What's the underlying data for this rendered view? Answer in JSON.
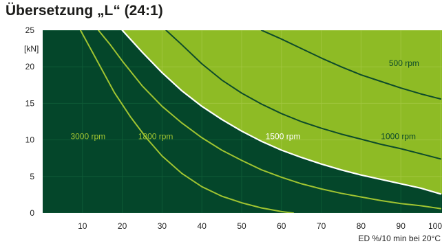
{
  "chart_data": {
    "type": "line",
    "title": "Übersetzung „L“ (24:1)",
    "xlabel": "ED %/10 min bei 20°C",
    "ylabel": "[kN]",
    "xlim": [
      0,
      100
    ],
    "ylim": [
      0,
      25
    ],
    "x_ticks": [
      "10",
      "20",
      "30",
      "40",
      "50",
      "60",
      "70",
      "80",
      "90",
      "100"
    ],
    "y_ticks": [
      "0",
      "5",
      "10",
      "15",
      "20",
      "25"
    ],
    "grid": true,
    "colors": {
      "dark_region": "#04462a",
      "light_region": "#8ebb25",
      "curve_on_dark": "#a0c431",
      "curve_on_light": "#0d4a2b",
      "boundary": "#ffffff",
      "grid_on_dark": "#0e5a36",
      "grid_on_light": "#9fc63d"
    },
    "series": [
      {
        "name": "3000 rpm",
        "label_at": [
          7,
          10.5
        ],
        "x": [
          9.5,
          12,
          15,
          18,
          22,
          26,
          30,
          35,
          40,
          45,
          50,
          55,
          60,
          63
        ],
        "y": [
          25,
          22.5,
          19.5,
          16.5,
          13.2,
          10.3,
          7.8,
          5.4,
          3.6,
          2.3,
          1.4,
          0.7,
          0.2,
          0
        ]
      },
      {
        "name": "1800 rpm",
        "label_at": [
          24,
          10.5
        ],
        "x": [
          14,
          17,
          20,
          25,
          30,
          35,
          40,
          45,
          50,
          55,
          60,
          65,
          70,
          75,
          80,
          85,
          90,
          95,
          100
        ],
        "y": [
          25,
          23,
          20.8,
          17.4,
          14.6,
          12.3,
          10.3,
          8.6,
          7.2,
          5.9,
          4.9,
          4.0,
          3.3,
          2.7,
          2.2,
          1.7,
          1.3,
          1.0,
          0.6
        ]
      },
      {
        "name": "1500 rpm",
        "label_at": [
          56,
          10.5
        ],
        "x": [
          20,
          25,
          30,
          35,
          40,
          45,
          50,
          55,
          60,
          65,
          70,
          75,
          80,
          85,
          90,
          95,
          100
        ],
        "y": [
          25,
          22,
          19.2,
          16.7,
          14.6,
          12.8,
          11.2,
          9.8,
          8.6,
          7.6,
          6.7,
          5.9,
          5.2,
          4.6,
          4.0,
          3.4,
          2.6
        ]
      },
      {
        "name": "1000 rpm",
        "label_at": [
          85,
          10.5
        ],
        "x": [
          31,
          35,
          40,
          45,
          50,
          55,
          60,
          65,
          70,
          75,
          80,
          85,
          90,
          95,
          100
        ],
        "y": [
          25,
          23,
          20.4,
          18.2,
          16.4,
          14.9,
          13.6,
          12.5,
          11.6,
          10.8,
          10.1,
          9.4,
          8.8,
          8.1,
          7.4
        ]
      },
      {
        "name": "500 rpm",
        "label_at": [
          87,
          20.5
        ],
        "x": [
          55,
          60,
          65,
          70,
          75,
          80,
          85,
          90,
          95,
          100
        ],
        "y": [
          25,
          23.8,
          22.5,
          21.2,
          20.0,
          18.9,
          18.0,
          17.1,
          16.3,
          15.6
        ]
      }
    ]
  }
}
